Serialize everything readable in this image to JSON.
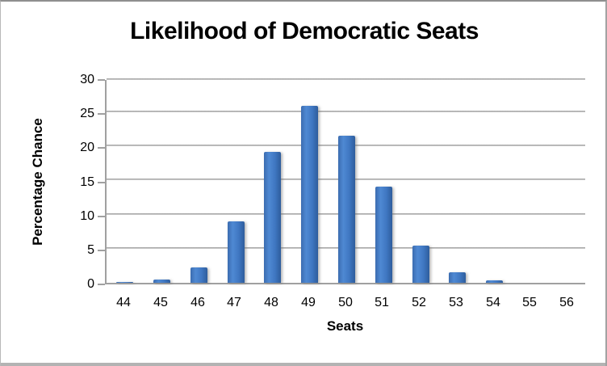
{
  "chart_data": {
    "type": "bar",
    "title": "Likelihood of Democratic Seats",
    "xlabel": "Seats",
    "ylabel": "Percentage Chance",
    "categories": [
      "44",
      "45",
      "46",
      "47",
      "48",
      "49",
      "50",
      "51",
      "52",
      "53",
      "54",
      "55",
      "56"
    ],
    "values": [
      0.1,
      0.5,
      2.2,
      9.0,
      19.2,
      26.0,
      21.6,
      14.1,
      5.5,
      1.6,
      0.3,
      0,
      0
    ],
    "yticks": [
      0,
      5,
      10,
      15,
      20,
      25,
      30
    ],
    "ylim": [
      0,
      30
    ],
    "grid": true,
    "legend_position": "none",
    "bar_color": "#3d76c2",
    "bar_gradient": [
      "#3b6cb0",
      "#4f89d3",
      "#3f77c2",
      "#2e5d9c"
    ],
    "gridline_color": "#979797",
    "axis_color": "#a0a0a0",
    "title_color": "#000000",
    "background_color": "#ffffff"
  }
}
